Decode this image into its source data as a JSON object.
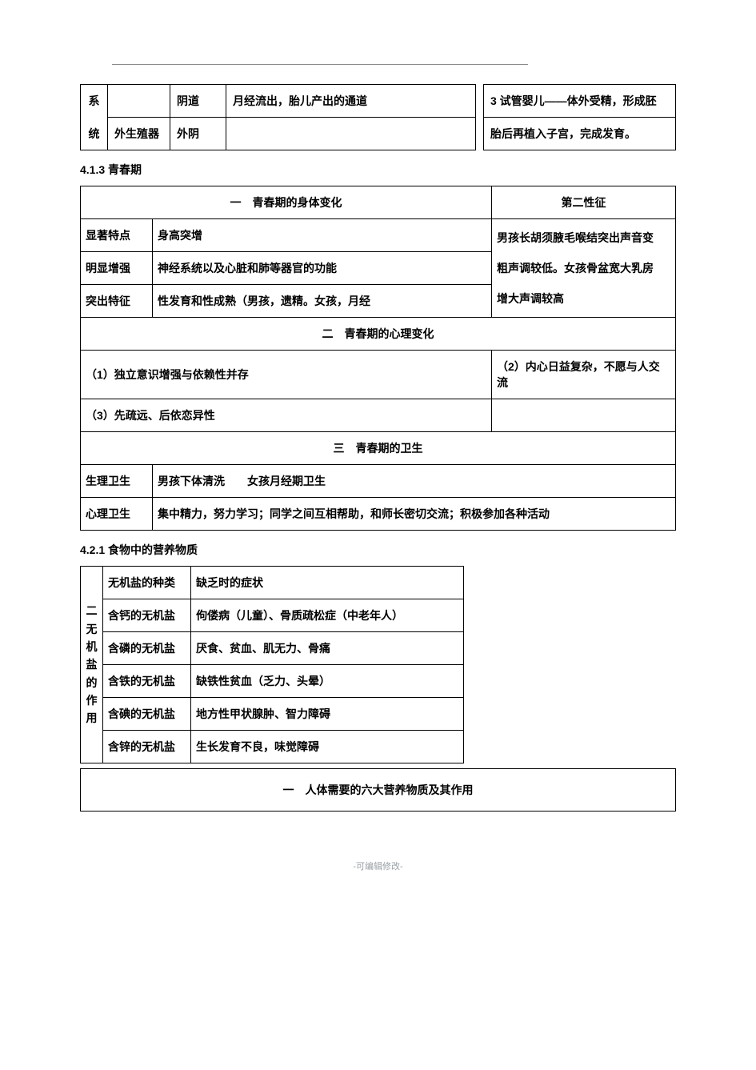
{
  "topTable": {
    "colA1": "系",
    "colA2": "统",
    "r1c2": "",
    "r1c3": "阴道",
    "r1c4": "月经流出，胎儿产出的通道",
    "r1c5": "3 试管婴儿——体外受精，形成胚",
    "r2c2": "外生殖器",
    "r2c3": "外阴",
    "r2c4": "",
    "r2c5": "胎后再植入子宫，完成发育。"
  },
  "sec413": "4.1.3 青春期",
  "t2": {
    "h1": "一　青春期的身体变化",
    "h2": "第二性征",
    "r1a": "显著特点",
    "r1b": "身高突增",
    "r1c": "男孩长胡须腋毛喉结突出声音变",
    "r2a": "明显增强",
    "r2b": "神经系统以及心脏和肺等器官的功能",
    "r2c": "粗声调较低。女孩骨盆宽大乳房",
    "r3a": "突出特征",
    "r3b": "性发育和性成熟（男孩，遗精。女孩，月经",
    "r3c": "增大声调较高",
    "h3": "二　青春期的心理变化",
    "p1": "（1）独立意识增强与依赖性并存",
    "p2": "（2）内心日益复杂，不愿与人交流",
    "p3": "（3）先疏远、后依恋异性",
    "p4": "",
    "h4": "三　青春期的卫生",
    "w1a": "生理卫生",
    "w1b": "男孩下体清洗　　女孩月经期卫生",
    "w2a": "心理卫生",
    "w2b": "集中精力，努力学习；同学之间互相帮助，和师长密切交流；积极参加各种活动"
  },
  "sec421": "4.2.1 食物中的营养物质",
  "t3": {
    "side": "二无机盐的作用",
    "h1": "无机盐的种类",
    "h2": "缺乏时的症状",
    "r1a": "含钙的无机盐",
    "r1b": "佝偻病（儿童）、骨质疏松症（中老年人）",
    "r2a": "含磷的无机盐",
    "r2b": "厌食、贫血、肌无力、骨痛",
    "r3a": "含铁的无机盐",
    "r3b": "缺铁性贫血（乏力、头晕）",
    "r4a": "含碘的无机盐",
    "r4b": "地方性甲状腺肿、智力障碍",
    "r5a": "含锌的无机盐",
    "r5b": "生长发育不良，味觉障碍"
  },
  "t4": {
    "title": "一　人体需要的六大营养物质及其作用"
  },
  "footer": "-可编辑修改-"
}
